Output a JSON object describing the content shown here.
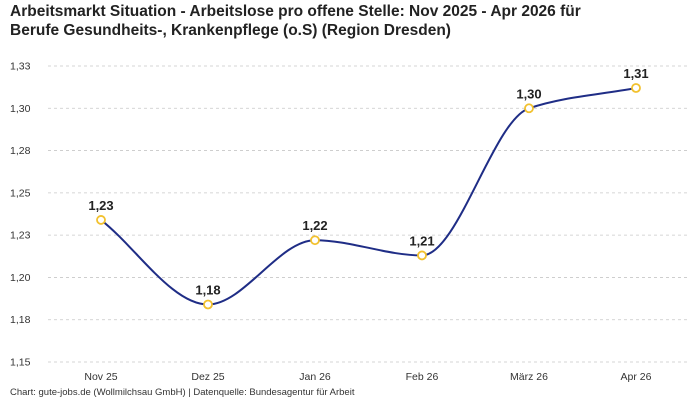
{
  "title_line1": "Arbeitsmarkt Situation - Arbeitslose pro offene Stelle: Nov 2025 - Apr 2026 für",
  "title_line2": "Berufe Gesundheits-, Krankenpflege (o.S) (Region Dresden)",
  "footer": "Chart: gute-jobs.de (Wollmilchsau GmbH) | Datenquelle: Bundesagentur für Arbeit",
  "colors": {
    "line": "#1f2d86",
    "marker": "#f2c12e",
    "grid": "#c8c8c8"
  },
  "chart_data": {
    "type": "line",
    "categories": [
      "Nov 25",
      "Dez 25",
      "Jan 26",
      "Feb 26",
      "März 26",
      "Apr 26"
    ],
    "series": [
      {
        "values": [
          1.234,
          1.184,
          1.222,
          1.213,
          1.3,
          1.312
        ],
        "labels": [
          "1,23",
          "1,18",
          "1,22",
          "1,21",
          "1,30",
          "1,31"
        ]
      }
    ],
    "y_ticks": [
      1.15,
      1.175,
      1.2,
      1.225,
      1.25,
      1.275,
      1.3,
      1.325
    ],
    "y_tick_labels": [
      "1,15",
      "1,18",
      "1,20",
      "1,23",
      "1,25",
      "1,28",
      "1,30",
      "1,33"
    ],
    "ylim": [
      1.15,
      1.325
    ],
    "grid": true,
    "smooth": true
  }
}
